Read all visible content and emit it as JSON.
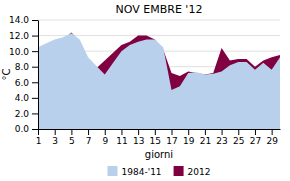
{
  "chart_data": {
    "type": "area",
    "title": "NOV EMBRE '12",
    "x_label": "giorni",
    "y_label": "°C",
    "x": [
      1,
      2,
      3,
      4,
      5,
      6,
      7,
      8,
      9,
      10,
      11,
      12,
      13,
      14,
      15,
      16,
      17,
      18,
      19,
      20,
      21,
      22,
      23,
      24,
      25,
      26,
      27,
      28,
      29,
      30
    ],
    "series": [
      {
        "name": "1984-'11",
        "color": "#b8d0ec",
        "values": [
          10.5,
          11.0,
          11.5,
          11.8,
          12.3,
          11.5,
          9.2,
          8.1,
          7.0,
          8.5,
          10.0,
          10.8,
          11.2,
          11.5,
          11.5,
          10.5,
          5.0,
          5.5,
          7.2,
          7.3,
          7.0,
          7.1,
          7.4,
          8.2,
          8.6,
          8.6,
          7.6,
          8.5,
          7.6,
          9.2
        ]
      },
      {
        "name": "2012",
        "color": "#800040",
        "values": [
          10.3,
          10.8,
          11.2,
          11.5,
          12.4,
          11.2,
          9.0,
          7.8,
          8.8,
          9.8,
          10.8,
          11.2,
          12.0,
          12.0,
          11.5,
          10.2,
          7.2,
          6.8,
          7.4,
          7.2,
          7.0,
          7.2,
          10.4,
          8.8,
          9.0,
          9.0,
          8.0,
          8.8,
          9.2,
          9.5
        ]
      }
    ],
    "xlim": [
      1,
      30
    ],
    "xticks": [
      1,
      3,
      5,
      7,
      9,
      11,
      13,
      15,
      17,
      19,
      21,
      23,
      25,
      27,
      29
    ],
    "ylim": [
      0,
      14
    ],
    "yticks": [
      {
        "value": 0,
        "label": "0.0"
      },
      {
        "value": 2.0,
        "label": "2.0"
      },
      {
        "value": 4.0,
        "label": "4.0"
      },
      {
        "value": 6.0,
        "label": "6.0"
      },
      {
        "value": 8.0,
        "label": "8.0"
      },
      {
        "value": 10.0,
        "label": "10.0"
      },
      {
        "value": 12.0,
        "label": "12.0"
      },
      {
        "value": 14.0,
        "label": "14.0"
      }
    ],
    "grid": true,
    "legend": "bottom"
  }
}
